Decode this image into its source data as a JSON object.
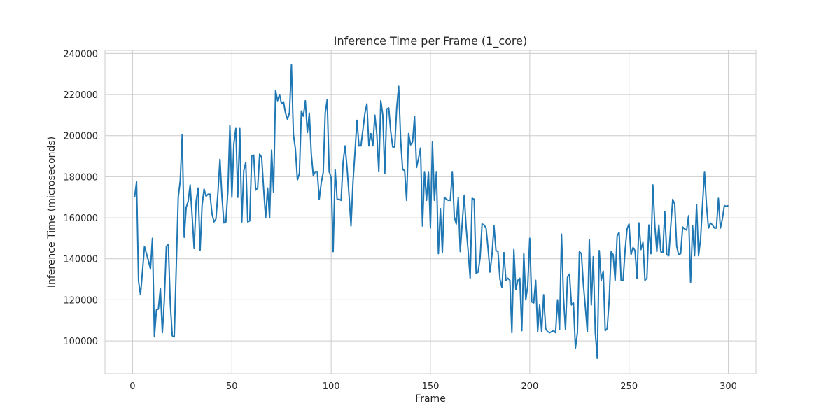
{
  "chart_data": {
    "type": "line",
    "title": "Inference Time per Frame (1_core)",
    "xlabel": "Frame",
    "ylabel": "Inference Time (microseconds)",
    "xlim": [
      -13.9,
      313.9
    ],
    "ylim": [
      84000,
      241500
    ],
    "x_ticks": [
      0,
      50,
      100,
      150,
      200,
      250,
      300
    ],
    "y_ticks": [
      100000,
      120000,
      140000,
      160000,
      180000,
      200000,
      220000,
      240000
    ],
    "grid": true,
    "line_color": "#1f77b4",
    "series": [
      {
        "x_start": 1,
        "x_step": 1,
        "values": [
          170000,
          177500,
          129000,
          122500,
          134000,
          146000,
          142500,
          139000,
          135000,
          150000,
          102000,
          115000,
          115500,
          125500,
          104000,
          120000,
          146000,
          147000,
          118000,
          102500,
          102000,
          136000,
          170000,
          178000,
          200500,
          150500,
          165000,
          168000,
          176000,
          161000,
          145000,
          168000,
          174500,
          144000,
          166000,
          174000,
          170500,
          171500,
          171500,
          162000,
          158000,
          159500,
          172500,
          188500,
          170500,
          157500,
          158000,
          173000,
          205000,
          170000,
          196000,
          203500,
          170000,
          203500,
          158000,
          183000,
          187000,
          158000,
          158500,
          190000,
          190500,
          173500,
          174500,
          191000,
          189500,
          174000,
          160000,
          174500,
          160000,
          193000,
          172500,
          222000,
          217000,
          220000,
          215500,
          216500,
          211000,
          208000,
          211000,
          234500,
          200500,
          193500,
          178500,
          181500,
          212000,
          209500,
          217000,
          201500,
          211000,
          191000,
          180500,
          182500,
          182500,
          169000,
          177000,
          182000,
          211000,
          217500,
          182500,
          179500,
          143500,
          183500,
          169000,
          169000,
          168500,
          187000,
          195000,
          184500,
          171000,
          156000,
          177500,
          192000,
          207500,
          195000,
          195000,
          203000,
          211000,
          215500,
          195000,
          201000,
          195000,
          210000,
          200500,
          182500,
          217000,
          210000,
          181500,
          213000,
          213500,
          202000,
          194500,
          194500,
          213500,
          224000,
          198000,
          183500,
          183000,
          168500,
          201000,
          195500,
          197000,
          209500,
          184500,
          189000,
          194000,
          156000,
          182500,
          168500,
          182500,
          155000,
          197000,
          168500,
          182500,
          142500,
          164500,
          143000,
          170000,
          169000,
          168500,
          168500,
          182500,
          160500,
          157000,
          170000,
          143500,
          157500,
          171000,
          155000,
          143500,
          130500,
          169500,
          169000,
          133000,
          133500,
          140500,
          157000,
          156500,
          155000,
          145000,
          133500,
          142000,
          156000,
          144000,
          143500,
          130000,
          126000,
          143000,
          129500,
          130500,
          129500,
          104000,
          144500,
          125000,
          129500,
          130500,
          105000,
          142500,
          120000,
          127000,
          150000,
          119000,
          118500,
          129500,
          104500,
          117500,
          104500,
          122500,
          106000,
          104500,
          104000,
          104500,
          105000,
          104000,
          120000,
          105500,
          152000,
          121000,
          105500,
          131000,
          132500,
          117500,
          118500,
          96500,
          104000,
          143500,
          142500,
          127500,
          116500,
          104500,
          149500,
          117500,
          141000,
          104000,
          91500,
          144000,
          129500,
          134000,
          105000,
          106000,
          120000,
          143500,
          142000,
          129500,
          151000,
          153000,
          129500,
          129500,
          144000,
          154500,
          157000,
          142000,
          145500,
          144000,
          130500,
          157500,
          144500,
          148000,
          129500,
          130500,
          156500,
          142500,
          176000,
          156000,
          143500,
          156500,
          143500,
          143000,
          163000,
          142000,
          141500,
          156000,
          169000,
          166500,
          146000,
          142000,
          142500,
          155500,
          154500,
          154000,
          161000,
          128500,
          156000,
          141500,
          166500,
          141500,
          149500,
          166500,
          182500,
          166000,
          155000,
          157500,
          156500,
          155000,
          155000,
          169500,
          155000,
          159500,
          166000,
          165500,
          166000
        ]
      }
    ]
  }
}
